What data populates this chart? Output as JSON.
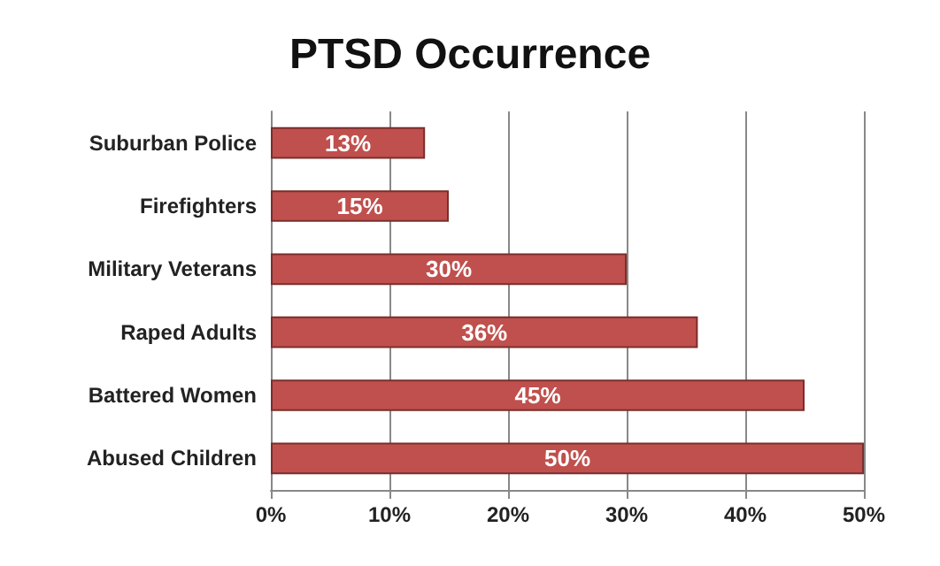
{
  "chart_data": {
    "type": "bar",
    "orientation": "horizontal",
    "title": "PTSD Occurrence",
    "categories": [
      "Suburban Police",
      "Firefighters",
      "Military Veterans",
      "Raped Adults",
      "Battered Women",
      "Abused Children"
    ],
    "values": [
      13,
      15,
      30,
      36,
      45,
      50
    ],
    "value_labels": [
      "13%",
      "15%",
      "30%",
      "36%",
      "45%",
      "50%"
    ],
    "color": "#c0504d",
    "xlim": [
      0,
      50
    ],
    "xticks": [
      {
        "value": 0,
        "label": "0%"
      },
      {
        "value": 10,
        "label": "10%"
      },
      {
        "value": 20,
        "label": "20%"
      },
      {
        "value": 30,
        "label": "30%"
      },
      {
        "value": 40,
        "label": "40%"
      },
      {
        "value": 50,
        "label": "50%"
      }
    ],
    "grid": "x"
  }
}
